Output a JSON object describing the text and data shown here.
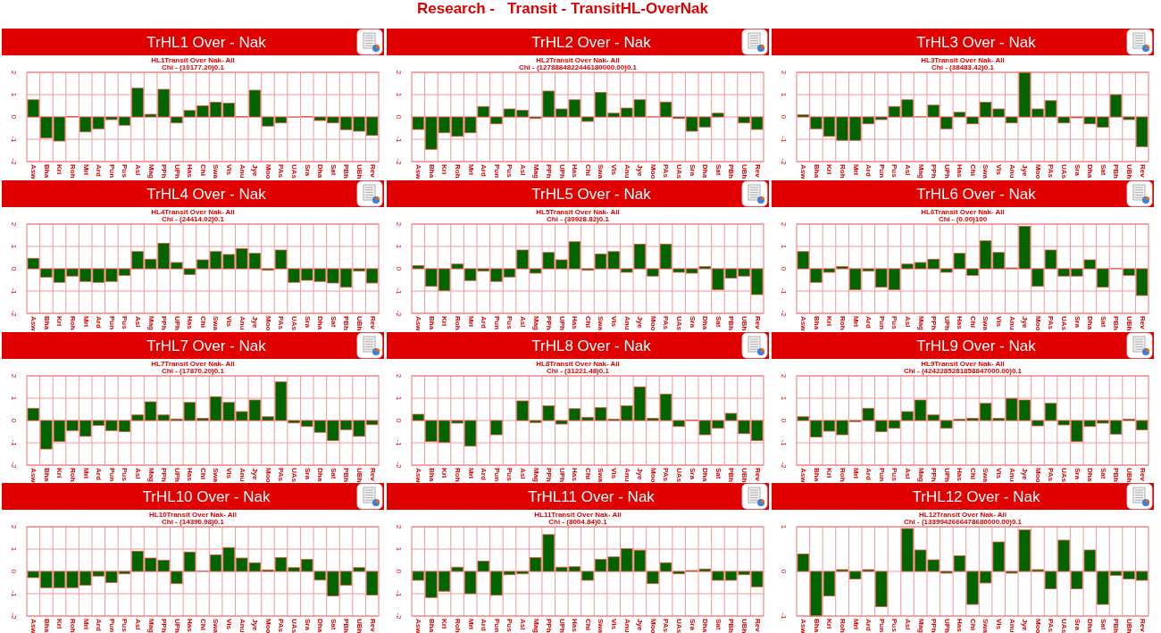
{
  "chart_data": [
    {
      "type": "other",
      "title": "Research -   Transit - TransitHL-OverNak"
    },
    {
      "type": "bar",
      "title": "TrHL1 Over - Nak",
      "subtitle": "HL1Transit Over Nak- All",
      "annotations": [
        "Chi - (10177.20)0.1"
      ],
      "categories": [
        "Asw",
        "Bha",
        "Kri",
        "Roh",
        "Mri",
        "Ard",
        "Pun",
        "Pus",
        "Asl",
        "Mag",
        "PPh",
        "UPh",
        "Has",
        "Chi",
        "Swa",
        "Vis",
        "Anu",
        "Jye",
        "Moo",
        "PAs",
        "UAs",
        "Sra",
        "Dha",
        "Sat",
        "PBh",
        "UBh",
        "Rev"
      ],
      "values": [
        0.77,
        -0.94,
        -1.08,
        0.02,
        -0.67,
        -0.53,
        -0.12,
        -0.37,
        1.29,
        0.12,
        1.24,
        -0.27,
        0.29,
        0.5,
        0.66,
        0.62,
        0.02,
        1.2,
        -0.41,
        -0.27,
        -0.01,
        0.02,
        -0.16,
        -0.27,
        -0.57,
        -0.64,
        -0.83
      ],
      "color": "#006400",
      "ylim": [
        -2,
        2
      ],
      "yticks": [
        -2,
        -1,
        0,
        1,
        2
      ],
      "grid": true
    },
    {
      "type": "bar",
      "title": "TrHL2 Over - Nak",
      "subtitle": "HL2Transit Over Nak- All",
      "annotations": [
        "Chi - (1278884822446180000.00)0.1"
      ],
      "categories": [
        "Asw",
        "Bha",
        "Kri",
        "Roh",
        "Mri",
        "Ard",
        "Pun",
        "Pus",
        "Asl",
        "Mag",
        "PPh",
        "UPh",
        "Has",
        "Chi",
        "Swa",
        "Vis",
        "Anu",
        "Jye",
        "Moo",
        "PAs",
        "UAs",
        "Sra",
        "Dha",
        "Sat",
        "PBh",
        "UBh",
        "Rev"
      ],
      "values": [
        -0.56,
        -1.45,
        -0.71,
        -0.87,
        -0.71,
        0.47,
        -0.31,
        0.36,
        0.3,
        -0.07,
        1.16,
        0.36,
        0.77,
        -0.2,
        1.1,
        0.17,
        0.4,
        0.77,
        0.01,
        0.67,
        -0.07,
        -0.64,
        -0.45,
        0.17,
        0,
        -0.27,
        -0.56
      ],
      "color": "#006400",
      "ylim": [
        -2,
        2
      ],
      "yticks": [
        -2,
        -1,
        0,
        1,
        2
      ],
      "grid": true
    },
    {
      "type": "bar",
      "title": "TrHL3 Over - Nak",
      "subtitle": "HL3Transit Over Nak- All",
      "annotations": [
        "Chi - (38483.42)0.1"
      ],
      "categories": [
        "Asw",
        "Bha",
        "Kri",
        "Roh",
        "Mri",
        "Ard",
        "Pun",
        "Pus",
        "Asl",
        "Mag",
        "PPh",
        "UPh",
        "Has",
        "Chi",
        "Swa",
        "Vis",
        "Anu",
        "Jye",
        "Moo",
        "PAs",
        "UAs",
        "Sra",
        "Dha",
        "Sat",
        "PBh",
        "UBh",
        "Rev"
      ],
      "values": [
        0.1,
        -0.53,
        -0.87,
        -1.05,
        -1.05,
        -0.31,
        -0.12,
        0.47,
        0.77,
        0.01,
        0.53,
        -0.53,
        0.21,
        -0.31,
        0.66,
        0.36,
        -0.27,
        2,
        0.36,
        0.73,
        -0.27,
        -0.04,
        -0.31,
        -0.46,
        1,
        -0.12,
        -1.33
      ],
      "color": "#006400",
      "ylim": [
        -2,
        2
      ],
      "yticks": [
        -2,
        -1,
        0,
        1,
        2
      ],
      "grid": true
    },
    {
      "type": "bar",
      "title": "TrHL4 Over - Nak",
      "subtitle": "HL4Transit Over Nak- All",
      "annotations": [
        "Chi - (24414.02)0.1"
      ],
      "categories": [
        "Asw",
        "Bha",
        "Kri",
        "Roh",
        "Mri",
        "Ard",
        "Pun",
        "Pus",
        "Asl",
        "Mag",
        "PPh",
        "UPh",
        "Has",
        "Chi",
        "Swa",
        "Vis",
        "Anu",
        "Jye",
        "Moo",
        "PAs",
        "UAs",
        "Sra",
        "Dha",
        "Sat",
        "PBh",
        "UBh",
        "Rev"
      ],
      "values": [
        0.47,
        -0.38,
        -0.61,
        -0.33,
        -0.57,
        -0.61,
        -0.57,
        -0.3,
        0.77,
        0.43,
        1.14,
        0.28,
        -0.26,
        0.4,
        0.77,
        0.64,
        0.9,
        0.69,
        -0.07,
        0.84,
        -0.61,
        -0.52,
        -0.57,
        -0.64,
        -0.83,
        -0.11,
        -0.64
      ],
      "color": "#006400",
      "ylim": [
        -2,
        2
      ],
      "yticks": [
        -2,
        -1,
        0,
        1,
        2
      ],
      "grid": true
    },
    {
      "type": "bar",
      "title": "TrHL5 Over - Nak",
      "subtitle": "HL5Transit Over Nak- All",
      "annotations": [
        "Chi - (30928.82)0.1"
      ],
      "categories": [
        "Asw",
        "Bha",
        "Kri",
        "Roh",
        "Mri",
        "Ard",
        "Pun",
        "Pus",
        "Asl",
        "Mag",
        "PPh",
        "UPh",
        "Has",
        "Chi",
        "Swa",
        "Vis",
        "Anu",
        "Jye",
        "Moo",
        "PAs",
        "UAs",
        "Sra",
        "Dha",
        "Sat",
        "PBh",
        "UBh",
        "Rev"
      ],
      "values": [
        0.14,
        -0.79,
        -0.98,
        0.21,
        -0.53,
        -0.11,
        -0.57,
        -0.37,
        0.84,
        -0.2,
        0.73,
        0.4,
        1.21,
        -0.07,
        0.66,
        0.77,
        -0.16,
        1.1,
        -0.33,
        1.1,
        -0.16,
        -0.2,
        0.1,
        -0.94,
        -0.42,
        -0.33,
        -1.16
      ],
      "color": "#006400",
      "ylim": [
        -2,
        2
      ],
      "yticks": [
        -2,
        -1,
        0,
        1,
        2
      ],
      "grid": true
    },
    {
      "type": "bar",
      "title": "TrHL6 Over - Nak",
      "subtitle": "HL6Transit Over Nak- All",
      "annotations": [
        "Chi - (0.00)100"
      ],
      "categories": [
        "Asw",
        "Bha",
        "Kri",
        "Roh",
        "Mri",
        "Ard",
        "Pun",
        "Pus",
        "Asl",
        "Mag",
        "PPh",
        "UPh",
        "Has",
        "Chi",
        "Swa",
        "Vis",
        "Anu",
        "Jye",
        "Moo",
        "PAs",
        "UAs",
        "Sra",
        "Dha",
        "Sat",
        "PBh",
        "UBh",
        "Rev"
      ],
      "values": [
        0.77,
        -0.61,
        -0.16,
        0.1,
        -0.94,
        -0.11,
        -0.83,
        -0.94,
        0.21,
        0.28,
        0.43,
        -0.16,
        0.69,
        -0.3,
        1.25,
        0.73,
        0.04,
        1.9,
        -0.79,
        0.84,
        -0.33,
        -0.33,
        0.4,
        -0.83,
        0.01,
        -0.3,
        -1.2
      ],
      "color": "#006400",
      "ylim": [
        -2,
        2
      ],
      "yticks": [
        -2,
        -1,
        0,
        1,
        2
      ],
      "grid": true
    },
    {
      "type": "bar",
      "title": "TrHL7 Over - Nak",
      "subtitle": "HL7Transit Over Nak- All",
      "annotations": [
        "Chi - (17870.20)0.1"
      ],
      "categories": [
        "Asw",
        "Bha",
        "Kri",
        "Roh",
        "Mri",
        "Ard",
        "Pun",
        "Pus",
        "Asl",
        "Mag",
        "PPh",
        "UPh",
        "Has",
        "Chi",
        "Swa",
        "Vis",
        "Anu",
        "Jye",
        "Moo",
        "PAs",
        "UAs",
        "Sra",
        "Dha",
        "Sat",
        "PBh",
        "UBh",
        "Rev"
      ],
      "values": [
        0.55,
        -1.28,
        -0.94,
        -0.45,
        -0.71,
        -0.22,
        -0.45,
        -0.5,
        0.25,
        0.84,
        0.25,
        0.07,
        0.81,
        0.1,
        1.07,
        0.81,
        0.4,
        0.92,
        0.17,
        1.73,
        -0.11,
        -0.27,
        -0.53,
        -0.9,
        -0.41,
        -0.71,
        -0.19
      ],
      "color": "#006400",
      "ylim": [
        -2,
        2
      ],
      "yticks": [
        -2,
        -1,
        0,
        1,
        2
      ],
      "grid": true
    },
    {
      "type": "bar",
      "title": "TrHL8 Over - Nak",
      "subtitle": "HL8Transit Over Nak- All",
      "annotations": [
        "Chi - (31221.48)0.1"
      ],
      "categories": [
        "Asw",
        "Bha",
        "Kri",
        "Roh",
        "Mri",
        "Ard",
        "Pun",
        "Pus",
        "Asl",
        "Mag",
        "PPh",
        "UPh",
        "Has",
        "Chi",
        "Swa",
        "Vis",
        "Anu",
        "Jye",
        "Moo",
        "PAs",
        "UAs",
        "Sra",
        "Dha",
        "Sat",
        "PBh",
        "UBh",
        "Rev"
      ],
      "values": [
        0.28,
        -0.94,
        -0.98,
        -0.12,
        -1.15,
        0,
        -0.64,
        0,
        0.88,
        -0.09,
        0.66,
        -0.16,
        0.53,
        0.14,
        0.58,
        0.06,
        0.66,
        1.51,
        0.1,
        1.18,
        -0.27,
        0.02,
        -0.64,
        -0.35,
        0.32,
        -0.59,
        -0.9
      ],
      "color": "#006400",
      "ylim": [
        -2,
        2
      ],
      "yticks": [
        -2,
        -1,
        0,
        1,
        2
      ],
      "grid": true
    },
    {
      "type": "bar",
      "title": "TrHL9 Over - Nak",
      "subtitle": "HL9Transit Over Nak- All",
      "annotations": [
        "Chi - (4242285281858847000.00)0.1"
      ],
      "categories": [
        "Asw",
        "Bha",
        "Kri",
        "Roh",
        "Mri",
        "Ard",
        "Pun",
        "Pus",
        "Asl",
        "Mag",
        "PPh",
        "UPh",
        "Has",
        "Chi",
        "Swa",
        "Vis",
        "Anu",
        "Jye",
        "Moo",
        "PAs",
        "UAs",
        "Sra",
        "Dha",
        "Sat",
        "PBh",
        "UBh",
        "Rev"
      ],
      "values": [
        0.17,
        -0.74,
        -0.48,
        -0.64,
        -0.05,
        0.55,
        -0.5,
        -0.35,
        0.4,
        0.92,
        0.25,
        -0.35,
        0.06,
        0.1,
        0.77,
        0.1,
        0.99,
        0.92,
        -0.24,
        0.77,
        -0.2,
        -0.94,
        -0.27,
        -0.12,
        -0.61,
        0.06,
        -0.42
      ],
      "color": "#006400",
      "ylim": [
        -2,
        2
      ],
      "yticks": [
        -2,
        -1,
        0,
        1,
        2
      ],
      "grid": true
    },
    {
      "type": "bar",
      "title": "TrHL10 Over - Nak",
      "subtitle": "HL10Transit Over Nak- All",
      "annotations": [
        "Chi - (14390.98)0.1"
      ],
      "categories": [
        "Asw",
        "Bha",
        "Kri",
        "Roh",
        "Mri",
        "Ard",
        "Pun",
        "Pus",
        "Asl",
        "Mag",
        "PPh",
        "UPh",
        "Has",
        "Chi",
        "Swa",
        "Vis",
        "Anu",
        "Jye",
        "Moo",
        "PAs",
        "UAs",
        "Sra",
        "Dha",
        "Sat",
        "PBh",
        "UBh",
        "Rev"
      ],
      "values": [
        -0.28,
        -0.73,
        -0.73,
        -0.73,
        -0.62,
        -0.21,
        -0.5,
        -0.11,
        0.91,
        0.6,
        0.5,
        -0.55,
        0.87,
        0.01,
        0.74,
        1.07,
        0.6,
        0.39,
        0.07,
        0.62,
        0.17,
        0.54,
        -0.39,
        -1.1,
        -0.62,
        0.17,
        -1.06
      ],
      "color": "#006400",
      "ylim": [
        -2,
        2
      ],
      "yticks": [
        -2,
        -1,
        0,
        1,
        2
      ],
      "grid": true
    },
    {
      "type": "bar",
      "title": "TrHL11 Over - Nak",
      "subtitle": "HL11Transit Over Nak- All",
      "annotations": [
        "Chi - (8004.84)0.1"
      ],
      "categories": [
        "Asw",
        "Bha",
        "Kri",
        "Roh",
        "Mri",
        "Ard",
        "Pun",
        "Pus",
        "Asl",
        "Mag",
        "PPh",
        "UPh",
        "Has",
        "Chi",
        "Swa",
        "Vis",
        "Anu",
        "Jye",
        "Moo",
        "PAs",
        "UAs",
        "Sra",
        "Dha",
        "Sat",
        "PBh",
        "UBh",
        "Rev"
      ],
      "values": [
        -0.4,
        -1.17,
        -0.89,
        0.19,
        -1,
        0.46,
        -1.07,
        -0.15,
        -0.11,
        0.62,
        1.65,
        0.19,
        0.21,
        -0.4,
        0.54,
        0.65,
        1.02,
        0.95,
        -0.55,
        0.39,
        -0.11,
        0.04,
        0.11,
        -0.4,
        -0.4,
        -0.15,
        -0.69
      ],
      "color": "#006400",
      "ylim": [
        -2,
        2
      ],
      "yticks": [
        -2,
        -1,
        0,
        1,
        2
      ],
      "grid": true
    },
    {
      "type": "bar",
      "title": "TrHL12 Over - Nak",
      "subtitle": "HL12Transit Over Nak- All",
      "annotations": [
        "Chi - (1339942666478680000.00)0.1"
      ],
      "categories": [
        "Asw",
        "Bha",
        "Kri",
        "Roh",
        "Mri",
        "Ard",
        "Pun",
        "Pus",
        "Asl",
        "Mag",
        "PPh",
        "UPh",
        "Has",
        "Chi",
        "Swa",
        "Vis",
        "Anu",
        "Jye",
        "Moo",
        "PAs",
        "UAs",
        "Sra",
        "Dha",
        "Sat",
        "PBh",
        "UBh",
        "Rev"
      ],
      "values": [
        0.39,
        -1,
        -0.55,
        0.04,
        -0.17,
        0.04,
        -0.79,
        0,
        0.96,
        0.48,
        0.26,
        -0.04,
        0.35,
        -0.74,
        -0.26,
        0.66,
        -0.04,
        0.93,
        0.04,
        -0.39,
        0.7,
        -0.39,
        0.48,
        -0.74,
        -0.09,
        -0.17,
        -0.2
      ],
      "color": "#006400",
      "ylim": [
        -1,
        1
      ],
      "yticks": [
        -1,
        0,
        1
      ],
      "grid": true
    }
  ]
}
